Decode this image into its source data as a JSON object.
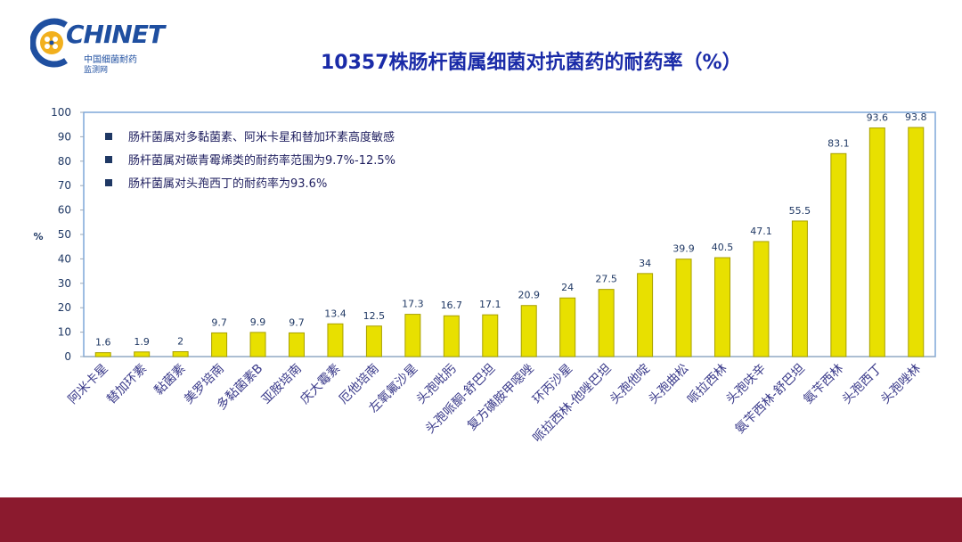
{
  "logo": {
    "wordmark": "CHINET",
    "sub_line1": "中国细菌耐药",
    "sub_line2": "监测网"
  },
  "title": "10357株肠杆菌属细菌对抗菌药的耐药率（%）",
  "colors": {
    "bar": "#e8e000",
    "bar_edge": "#a8a000",
    "axis_text": "#1f3864",
    "frame": "#7fa7d8",
    "bottom_bar": "#8b1a2e"
  },
  "chart_data": {
    "type": "bar",
    "title": "10357株肠杆菌属细菌对抗菌药的耐药率（%）",
    "ylabel": "%",
    "xlabel": "",
    "ylim": [
      0,
      100
    ],
    "yticks": [
      0,
      10,
      20,
      30,
      40,
      50,
      60,
      70,
      80,
      90,
      100
    ],
    "grid": false,
    "categories": [
      "阿米卡星",
      "替加环素",
      "黏菌素",
      "美罗培南",
      "多黏菌素B",
      "亚胺培南",
      "庆大霉素",
      "厄他培南",
      "左氧氟沙星",
      "头孢吡肟",
      "头孢哌酮-舒巴坦",
      "复方磺胺甲噁唑",
      "环丙沙星",
      "哌拉西林-他唑巴坦",
      "头孢他啶",
      "头孢曲松",
      "哌拉西林",
      "头孢呋辛",
      "氨苄西林-舒巴坦",
      "氨苄西林",
      "头孢西丁",
      "头孢唑林"
    ],
    "values": [
      1.6,
      1.9,
      2,
      9.7,
      9.9,
      9.7,
      13.4,
      12.5,
      17.3,
      16.7,
      17.1,
      20.9,
      24,
      27.5,
      34,
      39.9,
      40.5,
      47.1,
      55.5,
      83.1,
      93.6,
      93.8
    ],
    "value_labels": [
      "1.6",
      "1.9",
      "2",
      "9.7",
      "9.9",
      "9.7",
      "13.4",
      "12.5",
      "17.3",
      "16.7",
      "17.1",
      "20.9",
      "24",
      "27.5",
      "34",
      "39.9",
      "40.5",
      "47.1",
      "55.5",
      "83.1",
      "93.6",
      "93.8"
    ],
    "annotations": [
      "肠杆菌属对多黏菌素、阿米卡星和替加环素高度敏感",
      "肠杆菌属对碳青霉烯类的耐药率范围为9.7%-12.5%",
      "肠杆菌属对头孢西丁的耐药率为93.6%"
    ]
  }
}
